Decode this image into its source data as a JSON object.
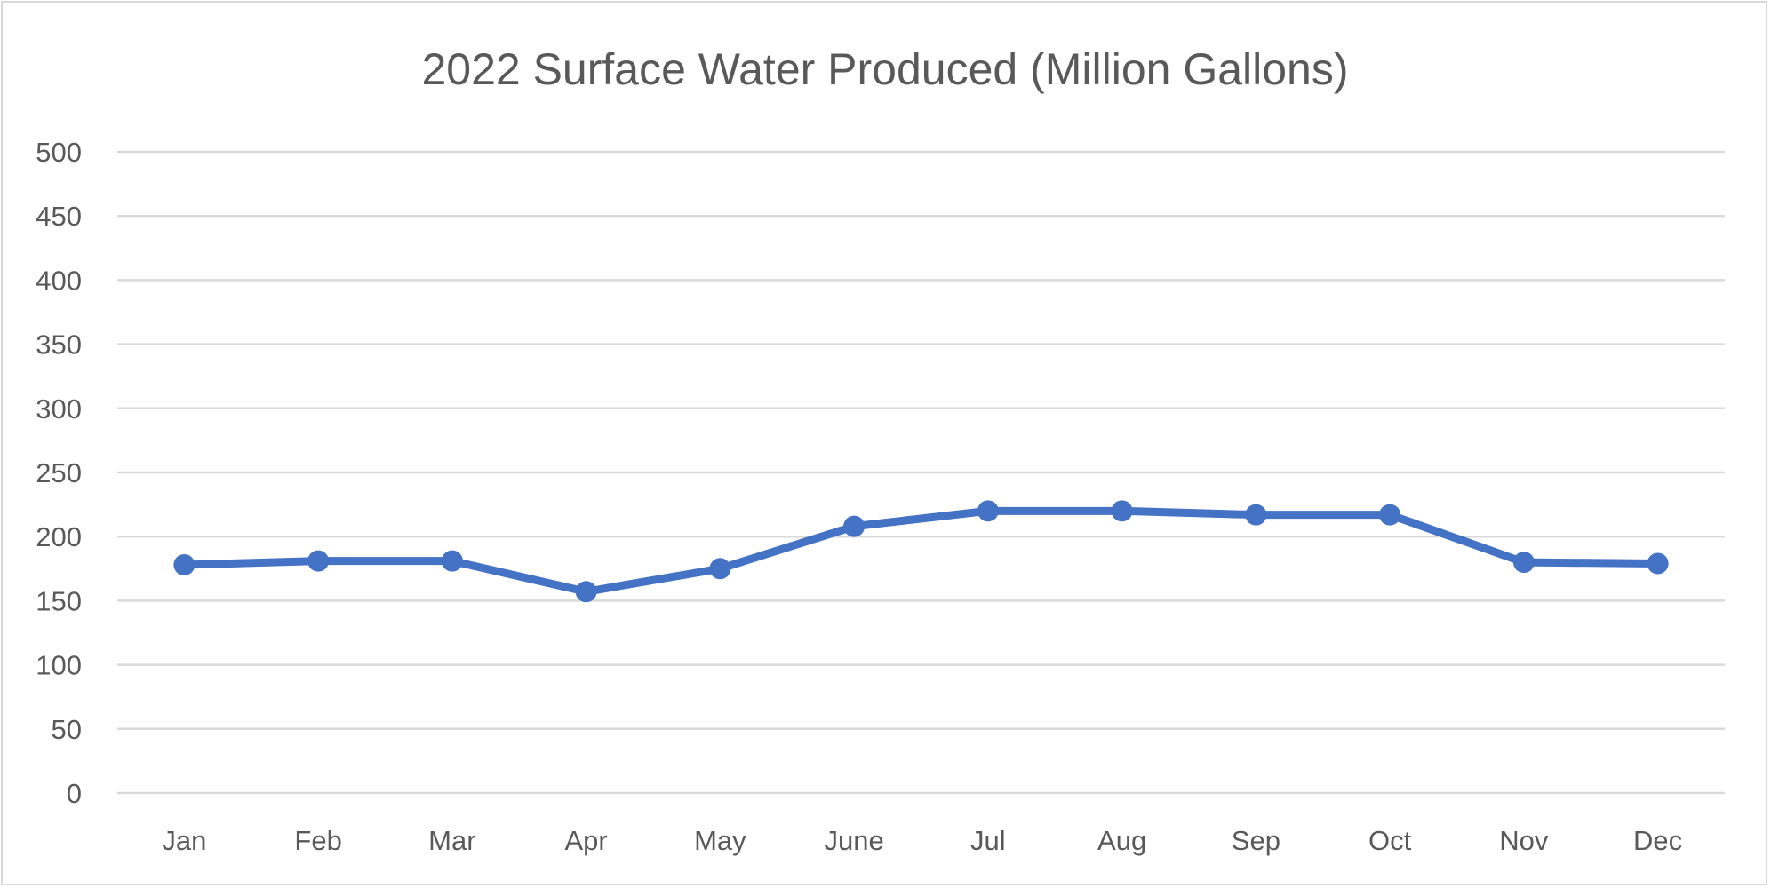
{
  "chart_data": {
    "type": "line",
    "title": "2022 Surface Water Produced (Million Gallons)",
    "xlabel": "",
    "ylabel": "",
    "categories": [
      "Jan",
      "Feb",
      "Mar",
      "Apr",
      "May",
      "June",
      "Jul",
      "Aug",
      "Sep",
      "Oct",
      "Nov",
      "Dec"
    ],
    "series": [
      {
        "name": "Surface Water Produced",
        "color": "#4472c4",
        "values": [
          178,
          181,
          181,
          157,
          175,
          208,
          220,
          220,
          217,
          217,
          180,
          179
        ]
      }
    ],
    "ylim": [
      0,
      500
    ],
    "yticks": [
      0,
      50,
      100,
      150,
      200,
      250,
      300,
      350,
      400,
      450,
      500
    ],
    "ytick_labels": [
      "0",
      "50",
      "100",
      "150",
      "200",
      "250",
      "300",
      "350",
      "400",
      "450",
      "500"
    ],
    "grid": true,
    "legend": "none",
    "markers": true
  }
}
